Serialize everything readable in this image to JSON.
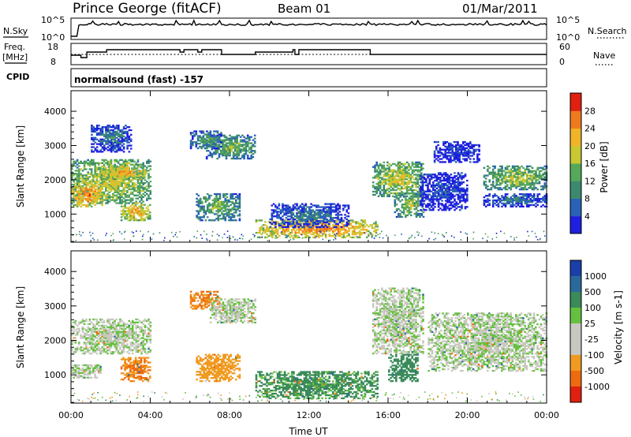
{
  "header": {
    "station": "Prince George (fitACF)",
    "beam": "Beam 01",
    "date": "01/Mar/2011"
  },
  "side_labels": {
    "nsky": "N.Sky",
    "freq_line1": "Freq.",
    "freq_line2": "[MHz]",
    "cpid": "CPID",
    "nsearch": "N.Search",
    "nave": "Nave"
  },
  "ticks": {
    "nsky_top": "10^5",
    "nsky_bottom": "10^0",
    "nsearch_top": "10^5",
    "nsearch_bottom": "10^0",
    "freq_top": "18",
    "freq_bottom": "8",
    "nave_top": "60",
    "nave_bottom": "0"
  },
  "cpid_text": "normalsound (fast) -157",
  "axis": {
    "ylabel": "Slant Range [km]",
    "xlabel": "Time UT",
    "y_ticks": [
      "1000",
      "2000",
      "3000",
      "4000"
    ],
    "x_ticks": [
      "00:00",
      "04:00",
      "08:00",
      "12:00",
      "16:00",
      "20:00",
      "00:00"
    ]
  },
  "power_colorbar": {
    "label": "Power [dB]",
    "ticks": [
      "4",
      "8",
      "12",
      "16",
      "20",
      "24",
      "28"
    ],
    "colors": [
      "#1f1fe0",
      "#2a62b8",
      "#3c8a6e",
      "#56a85a",
      "#c8c832",
      "#f0b428",
      "#ee7a20",
      "#e02010"
    ]
  },
  "velocity_colorbar": {
    "label": "Velocity [m s-1]",
    "ticks": [
      "1000",
      "500",
      "100",
      "25",
      "-25",
      "-100",
      "-500",
      "-1000"
    ],
    "colors": [
      "#1a3fa8",
      "#2a6a9a",
      "#3a8a5a",
      "#66c040",
      "#c8c8c0",
      "#c8c8c0",
      "#f09a20",
      "#ee6a10",
      "#e02010"
    ]
  },
  "chart_data": [
    {
      "type": "heatmap",
      "panel": "power",
      "x_unit": "hours UT",
      "y_unit": "km",
      "xlim": [
        0,
        24
      ],
      "ylim": [
        180,
        4600
      ],
      "colorbar_ticks": [
        4,
        8,
        12,
        16,
        20,
        24,
        28
      ],
      "regions": [
        {
          "t": [
            0.0,
            4.0
          ],
          "r": [
            1300,
            2600
          ],
          "level": 20
        },
        {
          "t": [
            0.0,
            1.6
          ],
          "r": [
            1200,
            1900
          ],
          "level": 26
        },
        {
          "t": [
            1.5,
            3.8
          ],
          "r": [
            2000,
            2400
          ],
          "level": 24
        },
        {
          "t": [
            2.5,
            4.0
          ],
          "r": [
            800,
            1300
          ],
          "level": 24
        },
        {
          "t": [
            1.0,
            3.0
          ],
          "r": [
            2800,
            3600
          ],
          "level": 10
        },
        {
          "t": [
            6.8,
            9.3
          ],
          "r": [
            2600,
            3300
          ],
          "level": 16
        },
        {
          "t": [
            6.0,
            7.6
          ],
          "r": [
            2900,
            3400
          ],
          "level": 14
        },
        {
          "t": [
            6.3,
            8.5
          ],
          "r": [
            800,
            1600
          ],
          "level": 16
        },
        {
          "t": [
            9.3,
            15.5
          ],
          "r": [
            300,
            800
          ],
          "level": 26
        },
        {
          "t": [
            10.0,
            14.0
          ],
          "r": [
            600,
            1300
          ],
          "level": 10
        },
        {
          "t": [
            15.2,
            17.8
          ],
          "r": [
            1500,
            2500
          ],
          "level": 20
        },
        {
          "t": [
            16.3,
            17.8
          ],
          "r": [
            900,
            1600
          ],
          "level": 18
        },
        {
          "t": [
            17.6,
            20.0
          ],
          "r": [
            1100,
            2200
          ],
          "level": 6
        },
        {
          "t": [
            18.3,
            20.6
          ],
          "r": [
            2500,
            3100
          ],
          "level": 6
        },
        {
          "t": [
            20.8,
            24.0
          ],
          "r": [
            1700,
            2400
          ],
          "level": 18
        },
        {
          "t": [
            20.8,
            24.0
          ],
          "r": [
            1200,
            1600
          ],
          "level": 10
        }
      ]
    },
    {
      "type": "heatmap",
      "panel": "velocity",
      "x_unit": "hours UT",
      "y_unit": "km",
      "xlim": [
        0,
        24
      ],
      "ylim": [
        180,
        4600
      ],
      "colorbar_ticks": [
        1000,
        500,
        100,
        25,
        -25,
        -100,
        -500,
        -1000
      ],
      "regions": [
        {
          "t": [
            0.0,
            4.0
          ],
          "r": [
            1600,
            2600
          ],
          "velocity": 0
        },
        {
          "t": [
            2.5,
            4.0
          ],
          "r": [
            800,
            1500
          ],
          "velocity": -300
        },
        {
          "t": [
            0.0,
            1.5
          ],
          "r": [
            900,
            1300
          ],
          "velocity": 0
        },
        {
          "t": [
            6.0,
            7.5
          ],
          "r": [
            2900,
            3400
          ],
          "velocity": -300
        },
        {
          "t": [
            7.0,
            9.3
          ],
          "r": [
            2500,
            3200
          ],
          "velocity": 0
        },
        {
          "t": [
            6.3,
            8.5
          ],
          "r": [
            800,
            1600
          ],
          "velocity": -200
        },
        {
          "t": [
            9.3,
            15.5
          ],
          "r": [
            300,
            1100
          ],
          "velocity": 150
        },
        {
          "t": [
            15.2,
            17.8
          ],
          "r": [
            1600,
            3500
          ],
          "velocity": 0
        },
        {
          "t": [
            16.0,
            17.5
          ],
          "r": [
            800,
            1600
          ],
          "velocity": 200
        },
        {
          "t": [
            18.0,
            24.0
          ],
          "r": [
            1100,
            2800
          ],
          "velocity": 0
        }
      ]
    }
  ]
}
